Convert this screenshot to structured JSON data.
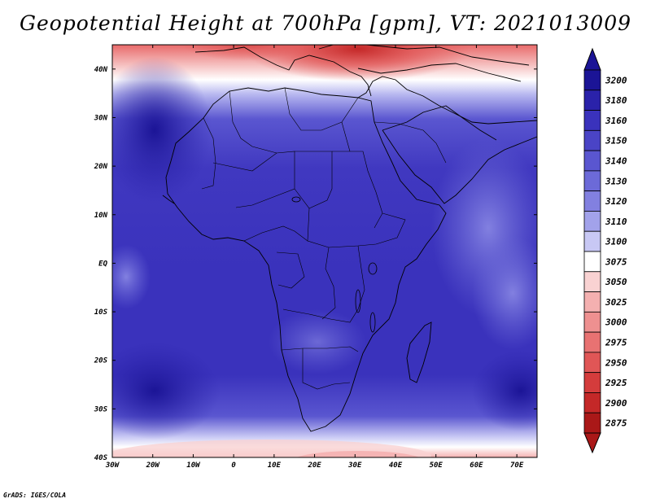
{
  "title": "Geopotential Height at 700hPa [gpm], VT: 2021013009",
  "credit": "GrADS: IGES/COLA",
  "map": {
    "lat_labels": [
      "40N",
      "30N",
      "20N",
      "10N",
      "EQ",
      "10S",
      "20S",
      "30S",
      "40S"
    ],
    "lon_labels": [
      "30W",
      "20W",
      "10W",
      "0",
      "10E",
      "20E",
      "30E",
      "40E",
      "50E",
      "60E",
      "70E"
    ],
    "lat_range": [
      -40,
      45
    ],
    "lon_range": [
      -30,
      75
    ]
  },
  "colorbar": {
    "levels": [
      "3200",
      "3180",
      "3160",
      "3150",
      "3140",
      "3130",
      "3120",
      "3110",
      "3100",
      "3075",
      "3050",
      "3025",
      "3000",
      "2975",
      "2950",
      "2925",
      "2900",
      "2875"
    ],
    "colors": [
      "#1b1496",
      "#2a22aa",
      "#3a32bc",
      "#4a44c6",
      "#5a56d0",
      "#6c6ad8",
      "#8280e0",
      "#a2a2ea",
      "#c8c8f4",
      "#ffffff",
      "#f9d2d2",
      "#f4b0b0",
      "#ee9090",
      "#e87272",
      "#e05656",
      "#d43c3c",
      "#c42828",
      "#aa1818"
    ]
  }
}
